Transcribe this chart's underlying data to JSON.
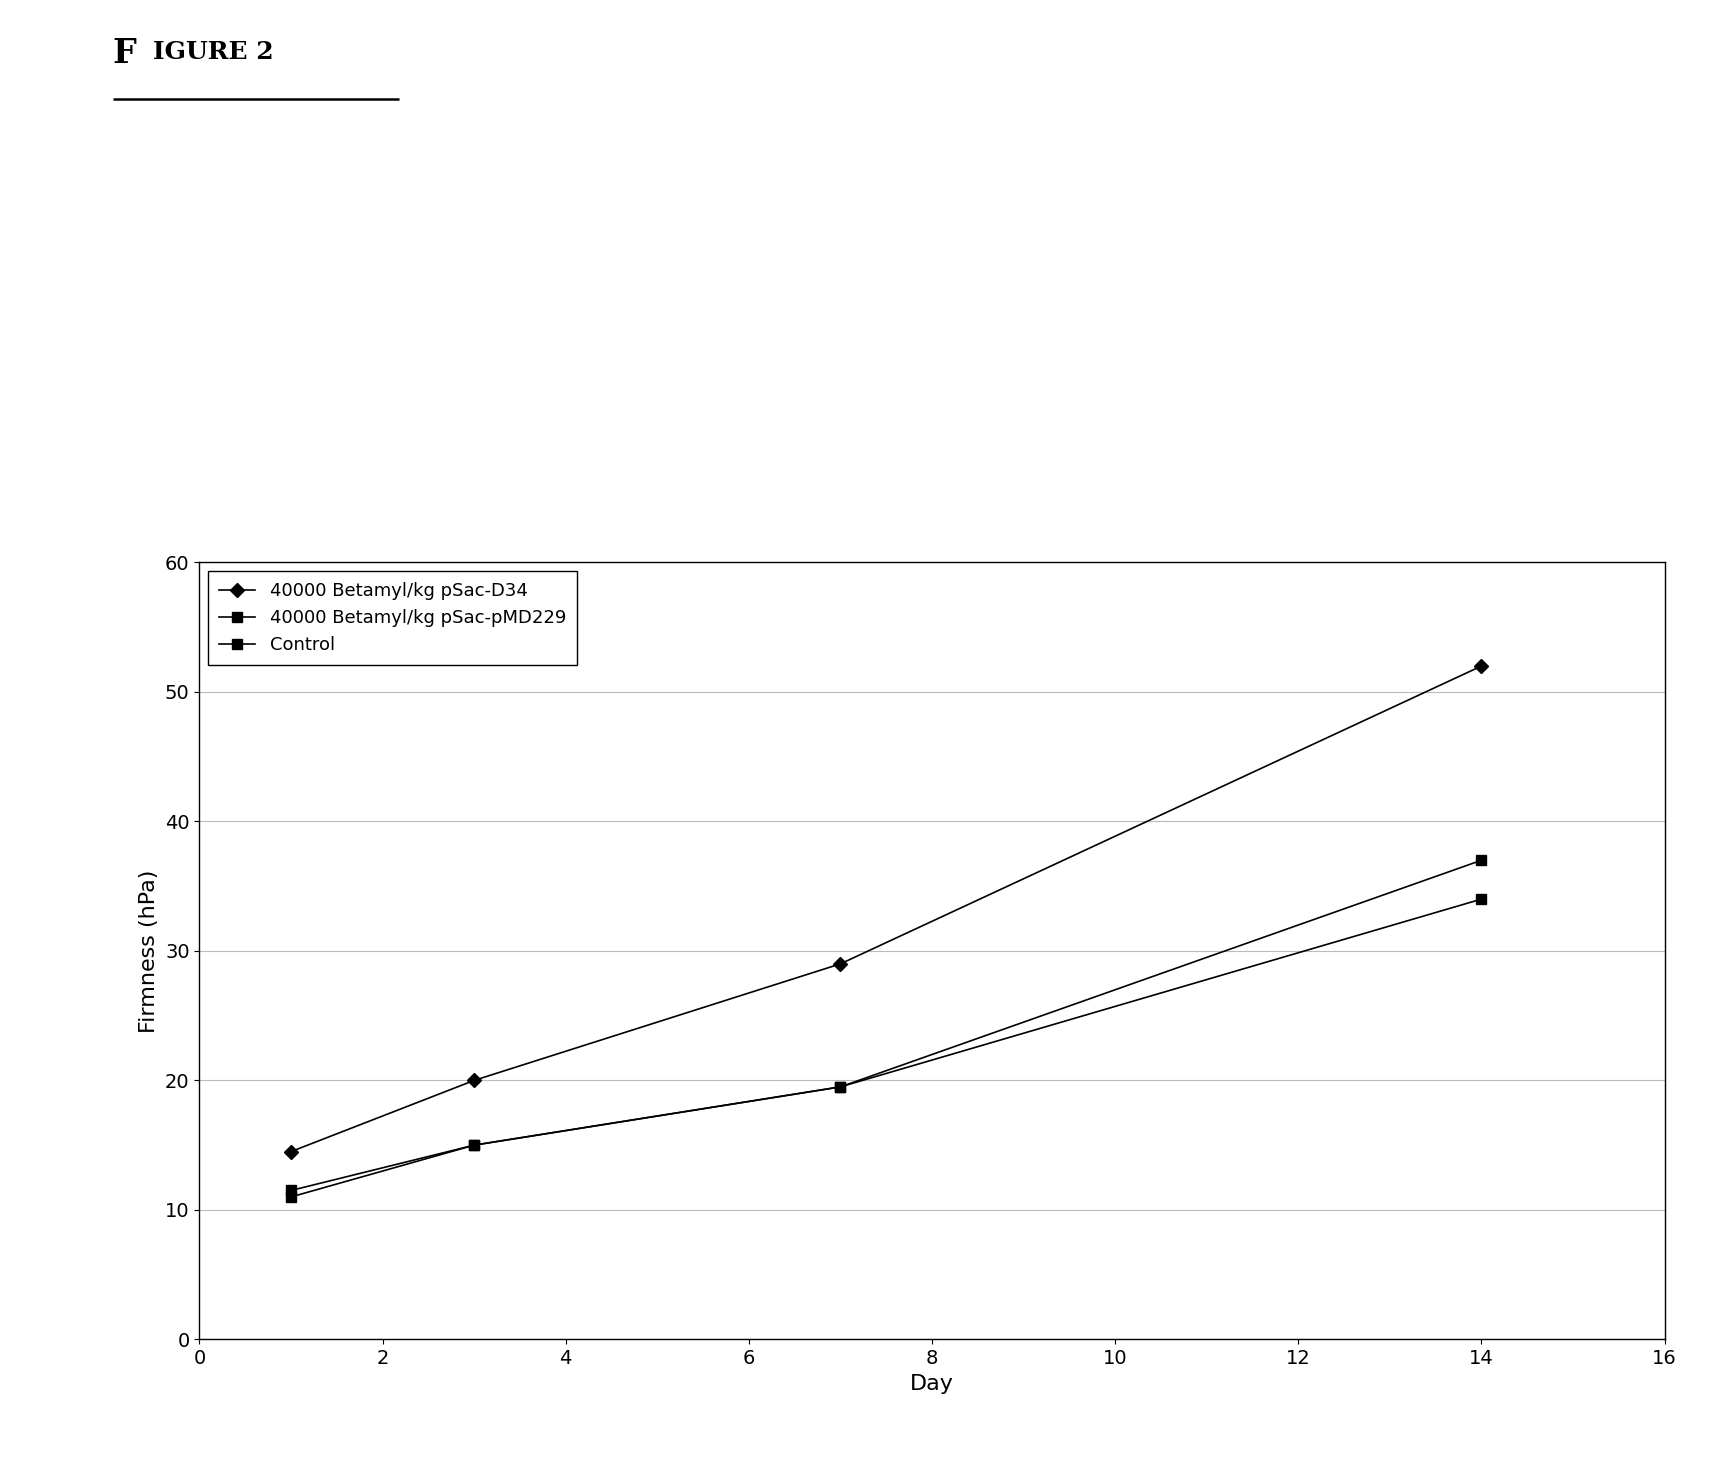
{
  "title_main": "F",
  "title_rest": "IGURE 2",
  "series": [
    {
      "label": "40000 Betamyl/kg pSac-D34",
      "x": [
        1,
        3,
        7,
        14
      ],
      "y": [
        14.5,
        20,
        29,
        52
      ],
      "marker": "D",
      "markersize": 7,
      "color": "#000000",
      "linewidth": 1.2
    },
    {
      "label": "40000 Betamyl/kg pSac-pMD229",
      "x": [
        1,
        3,
        7,
        14
      ],
      "y": [
        11.5,
        15,
        19.5,
        37
      ],
      "marker": "s",
      "markersize": 7,
      "color": "#000000",
      "linewidth": 1.2
    },
    {
      "label": "Control",
      "x": [
        1,
        3,
        7,
        14
      ],
      "y": [
        11,
        15,
        19.5,
        34
      ],
      "marker": "s",
      "markersize": 7,
      "color": "#000000",
      "linewidth": 1.2
    }
  ],
  "xlabel": "Day",
  "ylabel": "Firmness (hPa)",
  "xlim": [
    0,
    16
  ],
  "ylim": [
    0,
    60
  ],
  "xticks": [
    0,
    2,
    4,
    6,
    8,
    10,
    12,
    14,
    16
  ],
  "yticks": [
    0,
    10,
    20,
    30,
    40,
    50,
    60
  ],
  "background_color": "#ffffff",
  "grid_color": "#bbbbbb",
  "axis_label_fontsize": 16,
  "tick_fontsize": 14,
  "legend_fontsize": 13,
  "title_fontsize_big": 24,
  "title_fontsize_small": 18
}
